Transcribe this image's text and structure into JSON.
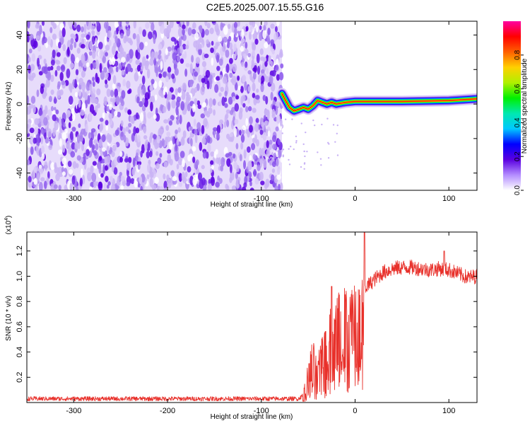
{
  "page": {
    "title": "C2E5.2025.007.15.55.G16"
  },
  "chart_data": [
    {
      "type": "heatmap",
      "xlabel": "Height of straight line (km)",
      "ylabel": "Frequency (Hz)",
      "xlim": [
        -350,
        130
      ],
      "ylim": [
        -50,
        48
      ],
      "x_ticks": [
        -300,
        -200,
        -100,
        0,
        100
      ],
      "y_ticks": [
        -40,
        -20,
        0,
        20,
        40
      ],
      "colorbar": {
        "label": "Normalized spectral amplitude",
        "range": [
          0,
          1
        ],
        "ticks": [
          0.0,
          0.2,
          0.4,
          0.6,
          0.8
        ],
        "colors": [
          "#ffffff",
          "#b38cff",
          "#5a00e0",
          "#0000ff",
          "#00c8ff",
          "#00e8b0",
          "#00f000",
          "#b0f000",
          "#ffd000",
          "#ff6000",
          "#ff0000",
          "#ff00a0"
        ]
      },
      "noise_region_x": [
        -350,
        -78
      ],
      "ridge": [
        {
          "x": -78,
          "y": 6
        },
        {
          "x": -75,
          "y": 3
        },
        {
          "x": -70,
          "y": -2
        },
        {
          "x": -65,
          "y": -4
        },
        {
          "x": -60,
          "y": -3
        },
        {
          "x": -55,
          "y": -2
        },
        {
          "x": -50,
          "y": -3
        },
        {
          "x": -45,
          "y": -1
        },
        {
          "x": -40,
          "y": 2
        },
        {
          "x": -35,
          "y": 1
        },
        {
          "x": -30,
          "y": 0
        },
        {
          "x": -25,
          "y": 1
        },
        {
          "x": -20,
          "y": 0
        },
        {
          "x": -10,
          "y": 1
        },
        {
          "x": 0,
          "y": 1.5
        },
        {
          "x": 20,
          "y": 1.5
        },
        {
          "x": 50,
          "y": 1.5
        },
        {
          "x": 80,
          "y": 1.8
        },
        {
          "x": 100,
          "y": 2
        },
        {
          "x": 130,
          "y": 3
        }
      ]
    },
    {
      "type": "line",
      "xlabel": "Height of straight line (km)",
      "ylabel": "SNR (10 * v/v)",
      "y_multiplier_label": "(x10",
      "y_multiplier_exp": "4",
      "xlim": [
        -350,
        130
      ],
      "ylim": [
        0,
        1.35
      ],
      "x_ticks": [
        -300,
        -200,
        -100,
        0,
        100
      ],
      "y_ticks": [
        0.2,
        0.4,
        0.6,
        0.8,
        1.0,
        1.2
      ],
      "color": "#e8302a",
      "envelope": [
        {
          "x": -350,
          "y": 0.03
        },
        {
          "x": -60,
          "y": 0.03
        },
        {
          "x": -55,
          "y": 0.08
        },
        {
          "x": -50,
          "y": 0.3
        },
        {
          "x": -45,
          "y": 0.45
        },
        {
          "x": -40,
          "y": 0.3
        },
        {
          "x": -35,
          "y": 0.55
        },
        {
          "x": -30,
          "y": 0.6
        },
        {
          "x": -25,
          "y": 0.7
        },
        {
          "x": -20,
          "y": 0.75
        },
        {
          "x": -15,
          "y": 0.8
        },
        {
          "x": -10,
          "y": 0.82
        },
        {
          "x": -5,
          "y": 0.83
        },
        {
          "x": 0,
          "y": 0.85
        },
        {
          "x": 10,
          "y": 0.9
        },
        {
          "x": 20,
          "y": 0.97
        },
        {
          "x": 30,
          "y": 1.03
        },
        {
          "x": 40,
          "y": 1.06
        },
        {
          "x": 50,
          "y": 1.07
        },
        {
          "x": 60,
          "y": 1.07
        },
        {
          "x": 70,
          "y": 1.06
        },
        {
          "x": 80,
          "y": 1.05
        },
        {
          "x": 90,
          "y": 1.06
        },
        {
          "x": 100,
          "y": 1.05
        },
        {
          "x": 110,
          "y": 1.02
        },
        {
          "x": 120,
          "y": 0.99
        },
        {
          "x": 130,
          "y": 1.0
        }
      ]
    }
  ]
}
